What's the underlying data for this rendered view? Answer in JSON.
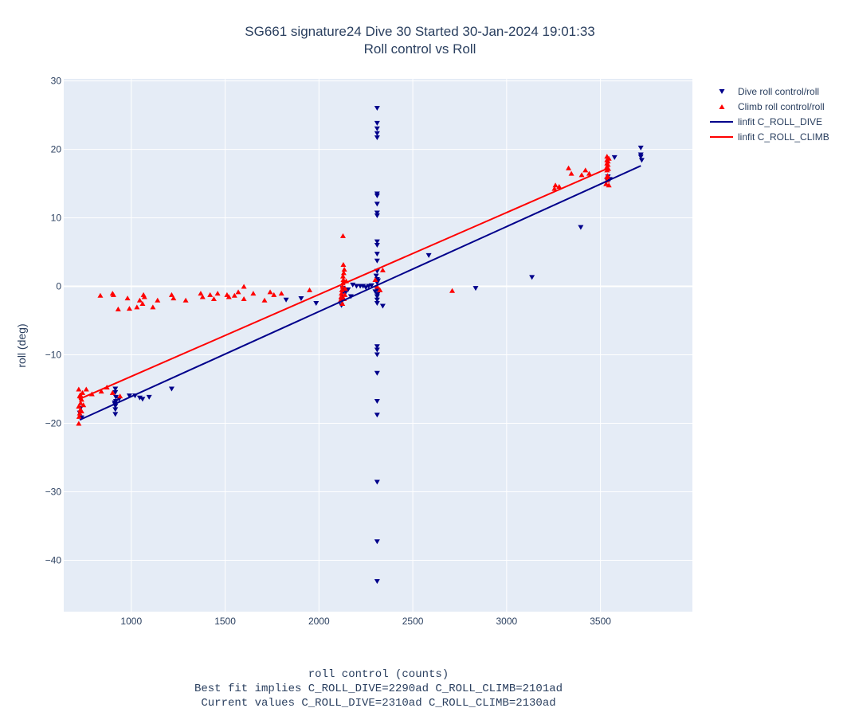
{
  "chart_data": {
    "type": "scatter",
    "title": [
      "SG661 signature24 Dive 30 Started 30-Jan-2024 19:01:33",
      "Roll control vs Roll"
    ],
    "xlabel": [
      "roll control (counts)",
      "Best fit implies C_ROLL_DIVE=2290ad C_ROLL_CLIMB=2101ad",
      "Current values C_ROLL_DIVE=2310ad C_ROLL_CLIMB=2130ad"
    ],
    "ylabel": "roll (deg)",
    "xlim": [
      640,
      3990
    ],
    "ylim": [
      -47.5,
      30.3
    ],
    "xticks": [
      1000,
      1500,
      2000,
      2500,
      3000,
      3500
    ],
    "yticks": [
      30,
      20,
      10,
      0,
      -10,
      -20,
      -30,
      -40
    ],
    "grid": true,
    "legend_position": "top-right outside",
    "colors": {
      "dive": "#00008b",
      "climb": "#ff0000",
      "plot_bg": "#e5ecf6"
    },
    "series": [
      {
        "name": "Dive roll control/roll",
        "kind": "markers",
        "marker": "triangle-down",
        "color": "#00008b",
        "points": [
          [
            725,
            -18.5
          ],
          [
            730,
            -17.8
          ],
          [
            735,
            -19.2
          ],
          [
            915,
            -15.0
          ],
          [
            915,
            -15.5
          ],
          [
            918,
            -16.2
          ],
          [
            912,
            -17.0
          ],
          [
            915,
            -17.5
          ],
          [
            915,
            -18.0
          ],
          [
            912,
            -17.2
          ],
          [
            918,
            -16.8
          ],
          [
            915,
            -18.7
          ],
          [
            935,
            -16.5
          ],
          [
            990,
            -16.0
          ],
          [
            1020,
            -16.0
          ],
          [
            1045,
            -16.3
          ],
          [
            1060,
            -16.5
          ],
          [
            1095,
            -16.2
          ],
          [
            1215,
            -15.0
          ],
          [
            1825,
            -2.0
          ],
          [
            1905,
            -1.8
          ],
          [
            1985,
            -2.5
          ],
          [
            2120,
            -2.8
          ],
          [
            2122,
            -2.2
          ],
          [
            2125,
            -1.5
          ],
          [
            2130,
            -0.8
          ],
          [
            2127,
            -0.3
          ],
          [
            2135,
            0.5
          ],
          [
            2140,
            -1.0
          ],
          [
            2155,
            -0.5
          ],
          [
            2170,
            -1.5
          ],
          [
            2180,
            0.2
          ],
          [
            2200,
            0.0
          ],
          [
            2220,
            0.0
          ],
          [
            2235,
            0.0
          ],
          [
            2250,
            -0.2
          ],
          [
            2265,
            0.0
          ],
          [
            2280,
            0.1
          ],
          [
            2310,
            26.0
          ],
          [
            2310,
            23.8
          ],
          [
            2310,
            23.0
          ],
          [
            2310,
            22.3
          ],
          [
            2310,
            21.7
          ],
          [
            2310,
            13.5
          ],
          [
            2310,
            13.2
          ],
          [
            2310,
            12.0
          ],
          [
            2310,
            10.7
          ],
          [
            2310,
            10.3
          ],
          [
            2310,
            6.5
          ],
          [
            2310,
            6.0
          ],
          [
            2310,
            4.7
          ],
          [
            2310,
            3.7
          ],
          [
            2310,
            2.2
          ],
          [
            2310,
            1.0
          ],
          [
            2310,
            0.5
          ],
          [
            2310,
            -0.5
          ],
          [
            2310,
            -1.5
          ],
          [
            2310,
            -2.0
          ],
          [
            2310,
            -2.5
          ],
          [
            2310,
            -8.8
          ],
          [
            2310,
            -9.3
          ],
          [
            2310,
            -10.0
          ],
          [
            2310,
            -12.7
          ],
          [
            2310,
            -16.8
          ],
          [
            2310,
            -18.8
          ],
          [
            2310,
            -28.6
          ],
          [
            2310,
            -37.3
          ],
          [
            2310,
            -43.1
          ],
          [
            2305,
            1.5
          ],
          [
            2315,
            0.8
          ],
          [
            2312,
            -1.2
          ],
          [
            2300,
            -0.8
          ],
          [
            2340,
            -2.9
          ],
          [
            2585,
            4.5
          ],
          [
            2835,
            -0.3
          ],
          [
            3135,
            1.3
          ],
          [
            3395,
            8.6
          ],
          [
            3535,
            15.5
          ],
          [
            3540,
            16.0
          ],
          [
            3550,
            15.6
          ],
          [
            3575,
            18.8
          ],
          [
            3715,
            20.2
          ],
          [
            3715,
            19.2
          ],
          [
            3715,
            18.9
          ],
          [
            3720,
            18.4
          ]
        ]
      },
      {
        "name": "Climb roll control/roll",
        "kind": "markers",
        "marker": "triangle-up",
        "color": "#ff0000",
        "points": [
          [
            720,
            -20.0
          ],
          [
            722,
            -19.0
          ],
          [
            725,
            -18.5
          ],
          [
            728,
            -18.0
          ],
          [
            720,
            -17.5
          ],
          [
            730,
            -17.0
          ],
          [
            735,
            -16.5
          ],
          [
            725,
            -16.0
          ],
          [
            740,
            -15.5
          ],
          [
            720,
            -15.0
          ],
          [
            735,
            -18.2
          ],
          [
            745,
            -17.3
          ],
          [
            728,
            -15.8
          ],
          [
            760,
            -15.0
          ],
          [
            790,
            -15.7
          ],
          [
            840,
            -15.3
          ],
          [
            870,
            -14.7
          ],
          [
            900,
            -15.5
          ],
          [
            940,
            -16.0
          ],
          [
            835,
            -1.3
          ],
          [
            900,
            -1.0
          ],
          [
            905,
            -1.2
          ],
          [
            930,
            -3.3
          ],
          [
            980,
            -1.7
          ],
          [
            990,
            -3.2
          ],
          [
            1030,
            -3.0
          ],
          [
            1045,
            -2.0
          ],
          [
            1060,
            -2.5
          ],
          [
            1065,
            -1.2
          ],
          [
            1070,
            -1.5
          ],
          [
            1115,
            -3.0
          ],
          [
            1140,
            -2.0
          ],
          [
            1215,
            -1.2
          ],
          [
            1225,
            -1.7
          ],
          [
            1290,
            -2.0
          ],
          [
            1370,
            -1.0
          ],
          [
            1380,
            -1.5
          ],
          [
            1420,
            -1.2
          ],
          [
            1440,
            -1.8
          ],
          [
            1460,
            -1.0
          ],
          [
            1510,
            -1.2
          ],
          [
            1520,
            -1.5
          ],
          [
            1550,
            -1.3
          ],
          [
            1570,
            -0.8
          ],
          [
            1600,
            -1.8
          ],
          [
            1600,
            0.0
          ],
          [
            1650,
            -1.0
          ],
          [
            1710,
            -2.0
          ],
          [
            1740,
            -0.8
          ],
          [
            1760,
            -1.2
          ],
          [
            1800,
            -1.0
          ],
          [
            1950,
            -0.5
          ],
          [
            2115,
            -2.0
          ],
          [
            2118,
            -1.5
          ],
          [
            2120,
            -1.0
          ],
          [
            2122,
            -0.5
          ],
          [
            2125,
            0.0
          ],
          [
            2127,
            0.5
          ],
          [
            2130,
            1.0
          ],
          [
            2128,
            1.5
          ],
          [
            2132,
            2.0
          ],
          [
            2135,
            2.5
          ],
          [
            2130,
            3.2
          ],
          [
            2125,
            -2.5
          ],
          [
            2140,
            -0.3
          ],
          [
            2145,
            0.8
          ],
          [
            2138,
            -1.2
          ],
          [
            2133,
            -1.8
          ],
          [
            2128,
            7.4
          ],
          [
            2300,
            1.0
          ],
          [
            2310,
            0.0
          ],
          [
            2325,
            -0.5
          ],
          [
            2340,
            2.4
          ],
          [
            2710,
            -0.6
          ],
          [
            3255,
            14.3
          ],
          [
            3260,
            14.8
          ],
          [
            3280,
            14.6
          ],
          [
            3330,
            17.3
          ],
          [
            3345,
            16.5
          ],
          [
            3400,
            16.3
          ],
          [
            3420,
            17.0
          ],
          [
            3440,
            16.5
          ],
          [
            3530,
            15.0
          ],
          [
            3535,
            15.5
          ],
          [
            3535,
            16.0
          ],
          [
            3535,
            17.0
          ],
          [
            3535,
            17.5
          ],
          [
            3535,
            18.0
          ],
          [
            3535,
            18.5
          ],
          [
            3535,
            19.0
          ],
          [
            3540,
            17.8
          ],
          [
            3540,
            18.3
          ],
          [
            3542,
            17.2
          ],
          [
            3538,
            16.2
          ],
          [
            3545,
            18.7
          ],
          [
            3545,
            14.8
          ]
        ]
      },
      {
        "name": "linfit C_ROLL_DIVE",
        "kind": "line",
        "color": "#00008b",
        "points": [
          [
            725,
            -19.5
          ],
          [
            3715,
            17.6
          ]
        ]
      },
      {
        "name": "linfit C_ROLL_CLIMB",
        "kind": "line",
        "color": "#ff0000",
        "points": [
          [
            720,
            -16.5
          ],
          [
            3545,
            17.3
          ]
        ]
      }
    ]
  }
}
